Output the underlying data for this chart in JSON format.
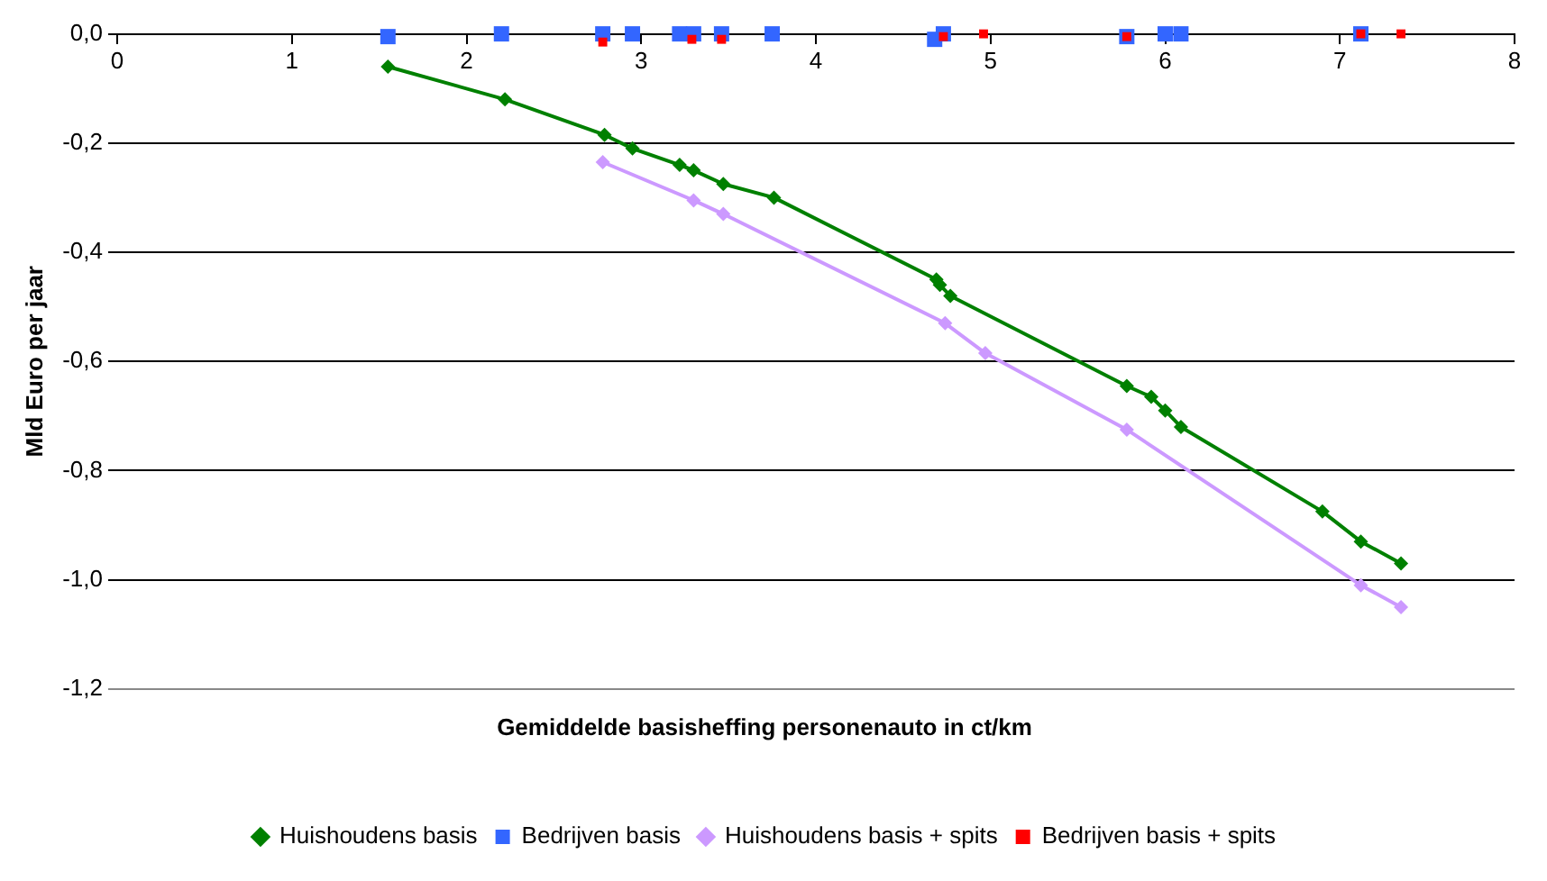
{
  "chart_data": {
    "type": "line",
    "xlabel": "Gemiddelde basisheffing personenauto in ct/km",
    "ylabel": "Mld Euro per jaar",
    "xlim": [
      0,
      8
    ],
    "xticks": [
      0,
      1,
      2,
      3,
      4,
      5,
      6,
      7,
      8
    ],
    "ylim": [
      -1.2,
      0
    ],
    "yticks": [
      {
        "value": -1.2,
        "label": "-1,2"
      },
      {
        "value": -1.0,
        "label": "-1,0"
      },
      {
        "value": -0.8,
        "label": "-0,8"
      },
      {
        "value": -0.6,
        "label": "-0,6"
      },
      {
        "value": -0.4,
        "label": "-0,4"
      },
      {
        "value": -0.2,
        "label": "-0,2"
      },
      {
        "value": 0,
        "label": "0,0"
      }
    ],
    "grid": "y",
    "legend": "bottom",
    "series": [
      {
        "name": "Huishoudens basis",
        "type": "line",
        "marker": "diamond",
        "color": "#008000",
        "x": [
          1.55,
          2.22,
          2.79,
          2.95,
          3.22,
          3.3,
          3.47,
          3.76,
          4.69,
          4.71,
          4.77,
          5.78,
          5.92,
          6.0,
          6.09,
          6.9,
          7.12,
          7.35
        ],
        "values": [
          -0.06,
          -0.12,
          -0.185,
          -0.21,
          -0.24,
          -0.25,
          -0.275,
          -0.3,
          -0.45,
          -0.46,
          -0.48,
          -0.645,
          -0.665,
          -0.69,
          -0.72,
          -0.875,
          -0.93,
          -0.97
        ]
      },
      {
        "name": "Bedrijven basis",
        "type": "scatter",
        "marker": "square",
        "color": "#3366ff",
        "x": [
          1.55,
          2.2,
          2.78,
          2.95,
          3.22,
          3.3,
          3.46,
          3.75,
          4.68,
          4.73,
          5.78,
          6.0,
          6.09,
          7.12
        ],
        "values": [
          -0.005,
          0,
          0,
          0,
          0,
          0,
          0,
          0,
          -0.01,
          0,
          -0.005,
          0,
          0,
          0
        ]
      },
      {
        "name": "Huishoudens basis + spits",
        "type": "line",
        "marker": "diamond",
        "color": "#cc99ff",
        "x": [
          2.78,
          3.3,
          3.47,
          4.74,
          4.97,
          5.78,
          7.12,
          7.35
        ],
        "values": [
          -0.235,
          -0.305,
          -0.33,
          -0.53,
          -0.585,
          -0.725,
          -1.01,
          -1.05
        ]
      },
      {
        "name": "Bedrijven basis + spits",
        "type": "scatter",
        "marker": "square",
        "color": "#ff0000",
        "x": [
          2.78,
          3.29,
          3.46,
          4.73,
          4.96,
          5.78,
          7.12,
          7.35
        ],
        "values": [
          -0.015,
          -0.01,
          -0.01,
          -0.005,
          0,
          -0.005,
          0,
          0
        ]
      }
    ]
  }
}
